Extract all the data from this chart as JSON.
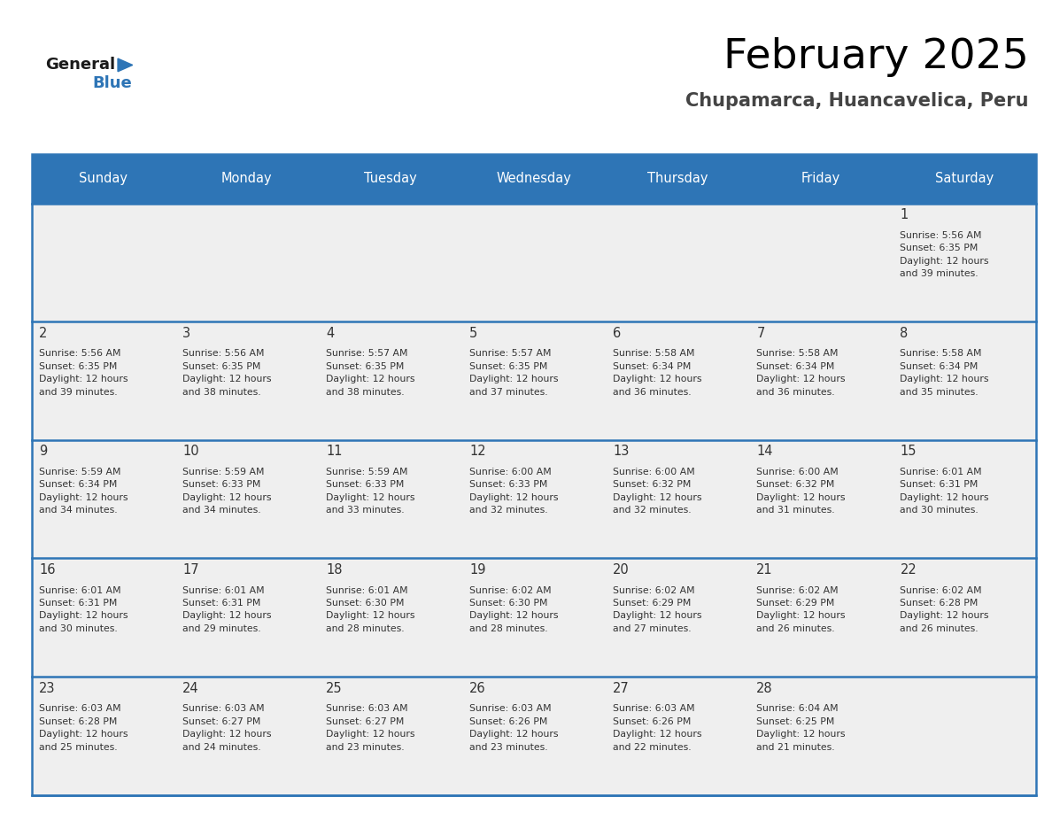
{
  "title": "February 2025",
  "subtitle": "Chupamarca, Huancavelica, Peru",
  "days_of_week": [
    "Sunday",
    "Monday",
    "Tuesday",
    "Wednesday",
    "Thursday",
    "Friday",
    "Saturday"
  ],
  "header_bg": "#2e75b6",
  "header_text": "#ffffff",
  "cell_bg": "#efefef",
  "border_color": "#2e75b6",
  "text_color": "#333333",
  "title_color": "#000000",
  "subtitle_color": "#444444",
  "logo_general_color": "#1a1a1a",
  "logo_blue_color": "#2e75b6",
  "calendar": [
    [
      {
        "day": null,
        "info": null
      },
      {
        "day": null,
        "info": null
      },
      {
        "day": null,
        "info": null
      },
      {
        "day": null,
        "info": null
      },
      {
        "day": null,
        "info": null
      },
      {
        "day": null,
        "info": null
      },
      {
        "day": 1,
        "info": "Sunrise: 5:56 AM\nSunset: 6:35 PM\nDaylight: 12 hours\nand 39 minutes."
      }
    ],
    [
      {
        "day": 2,
        "info": "Sunrise: 5:56 AM\nSunset: 6:35 PM\nDaylight: 12 hours\nand 39 minutes."
      },
      {
        "day": 3,
        "info": "Sunrise: 5:56 AM\nSunset: 6:35 PM\nDaylight: 12 hours\nand 38 minutes."
      },
      {
        "day": 4,
        "info": "Sunrise: 5:57 AM\nSunset: 6:35 PM\nDaylight: 12 hours\nand 38 minutes."
      },
      {
        "day": 5,
        "info": "Sunrise: 5:57 AM\nSunset: 6:35 PM\nDaylight: 12 hours\nand 37 minutes."
      },
      {
        "day": 6,
        "info": "Sunrise: 5:58 AM\nSunset: 6:34 PM\nDaylight: 12 hours\nand 36 minutes."
      },
      {
        "day": 7,
        "info": "Sunrise: 5:58 AM\nSunset: 6:34 PM\nDaylight: 12 hours\nand 36 minutes."
      },
      {
        "day": 8,
        "info": "Sunrise: 5:58 AM\nSunset: 6:34 PM\nDaylight: 12 hours\nand 35 minutes."
      }
    ],
    [
      {
        "day": 9,
        "info": "Sunrise: 5:59 AM\nSunset: 6:34 PM\nDaylight: 12 hours\nand 34 minutes."
      },
      {
        "day": 10,
        "info": "Sunrise: 5:59 AM\nSunset: 6:33 PM\nDaylight: 12 hours\nand 34 minutes."
      },
      {
        "day": 11,
        "info": "Sunrise: 5:59 AM\nSunset: 6:33 PM\nDaylight: 12 hours\nand 33 minutes."
      },
      {
        "day": 12,
        "info": "Sunrise: 6:00 AM\nSunset: 6:33 PM\nDaylight: 12 hours\nand 32 minutes."
      },
      {
        "day": 13,
        "info": "Sunrise: 6:00 AM\nSunset: 6:32 PM\nDaylight: 12 hours\nand 32 minutes."
      },
      {
        "day": 14,
        "info": "Sunrise: 6:00 AM\nSunset: 6:32 PM\nDaylight: 12 hours\nand 31 minutes."
      },
      {
        "day": 15,
        "info": "Sunrise: 6:01 AM\nSunset: 6:31 PM\nDaylight: 12 hours\nand 30 minutes."
      }
    ],
    [
      {
        "day": 16,
        "info": "Sunrise: 6:01 AM\nSunset: 6:31 PM\nDaylight: 12 hours\nand 30 minutes."
      },
      {
        "day": 17,
        "info": "Sunrise: 6:01 AM\nSunset: 6:31 PM\nDaylight: 12 hours\nand 29 minutes."
      },
      {
        "day": 18,
        "info": "Sunrise: 6:01 AM\nSunset: 6:30 PM\nDaylight: 12 hours\nand 28 minutes."
      },
      {
        "day": 19,
        "info": "Sunrise: 6:02 AM\nSunset: 6:30 PM\nDaylight: 12 hours\nand 28 minutes."
      },
      {
        "day": 20,
        "info": "Sunrise: 6:02 AM\nSunset: 6:29 PM\nDaylight: 12 hours\nand 27 minutes."
      },
      {
        "day": 21,
        "info": "Sunrise: 6:02 AM\nSunset: 6:29 PM\nDaylight: 12 hours\nand 26 minutes."
      },
      {
        "day": 22,
        "info": "Sunrise: 6:02 AM\nSunset: 6:28 PM\nDaylight: 12 hours\nand 26 minutes."
      }
    ],
    [
      {
        "day": 23,
        "info": "Sunrise: 6:03 AM\nSunset: 6:28 PM\nDaylight: 12 hours\nand 25 minutes."
      },
      {
        "day": 24,
        "info": "Sunrise: 6:03 AM\nSunset: 6:27 PM\nDaylight: 12 hours\nand 24 minutes."
      },
      {
        "day": 25,
        "info": "Sunrise: 6:03 AM\nSunset: 6:27 PM\nDaylight: 12 hours\nand 23 minutes."
      },
      {
        "day": 26,
        "info": "Sunrise: 6:03 AM\nSunset: 6:26 PM\nDaylight: 12 hours\nand 23 minutes."
      },
      {
        "day": 27,
        "info": "Sunrise: 6:03 AM\nSunset: 6:26 PM\nDaylight: 12 hours\nand 22 minutes."
      },
      {
        "day": 28,
        "info": "Sunrise: 6:04 AM\nSunset: 6:25 PM\nDaylight: 12 hours\nand 21 minutes."
      },
      {
        "day": null,
        "info": null
      }
    ]
  ]
}
